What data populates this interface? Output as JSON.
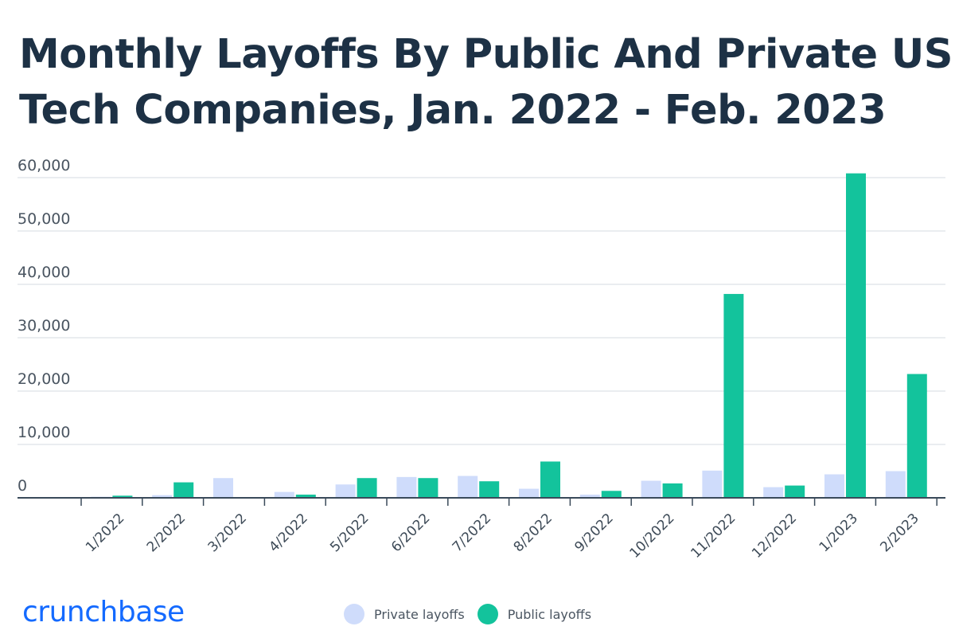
{
  "title_lines": [
    "Monthly Layoffs By Public And Private US",
    "Tech Companies, Jan. 2022 - Feb. 2023"
  ],
  "brand": "crunchbase",
  "colors": {
    "private": "#cfdcfb",
    "public": "#13c39c",
    "title": "#1d3145",
    "brand": "#146aff",
    "grid": "#e4e7eb",
    "axis": "#3a4a5a"
  },
  "chart_data": {
    "type": "bar",
    "title": "Monthly Layoffs By Public And Private US Tech Companies, Jan. 2022 - Feb. 2023",
    "categories": [
      "1/2022",
      "2/2022",
      "3/2022",
      "4/2022",
      "5/2022",
      "6/2022",
      "7/2022",
      "8/2022",
      "9/2022",
      "10/2022",
      "11/2022",
      "12/2022",
      "1/2023",
      "2/2023"
    ],
    "series": [
      {
        "name": "Private layoffs",
        "values": [
          200,
          500,
          3700,
          1100,
          2500,
          3900,
          4100,
          1700,
          600,
          3200,
          5100,
          2000,
          4400,
          5000
        ]
      },
      {
        "name": "Public layoffs",
        "values": [
          400,
          2900,
          0,
          600,
          3700,
          3700,
          3100,
          6800,
          1300,
          2700,
          38200,
          2300,
          60800,
          23200
        ]
      }
    ],
    "yticks": [
      0,
      10000,
      20000,
      30000,
      40000,
      50000,
      60000
    ],
    "ytick_labels": [
      "0",
      "10,000",
      "20,000",
      "30,000",
      "40,000",
      "50,000",
      "60,000"
    ],
    "ylim": [
      0,
      60000
    ],
    "grid": true,
    "legend_position": "bottom"
  }
}
